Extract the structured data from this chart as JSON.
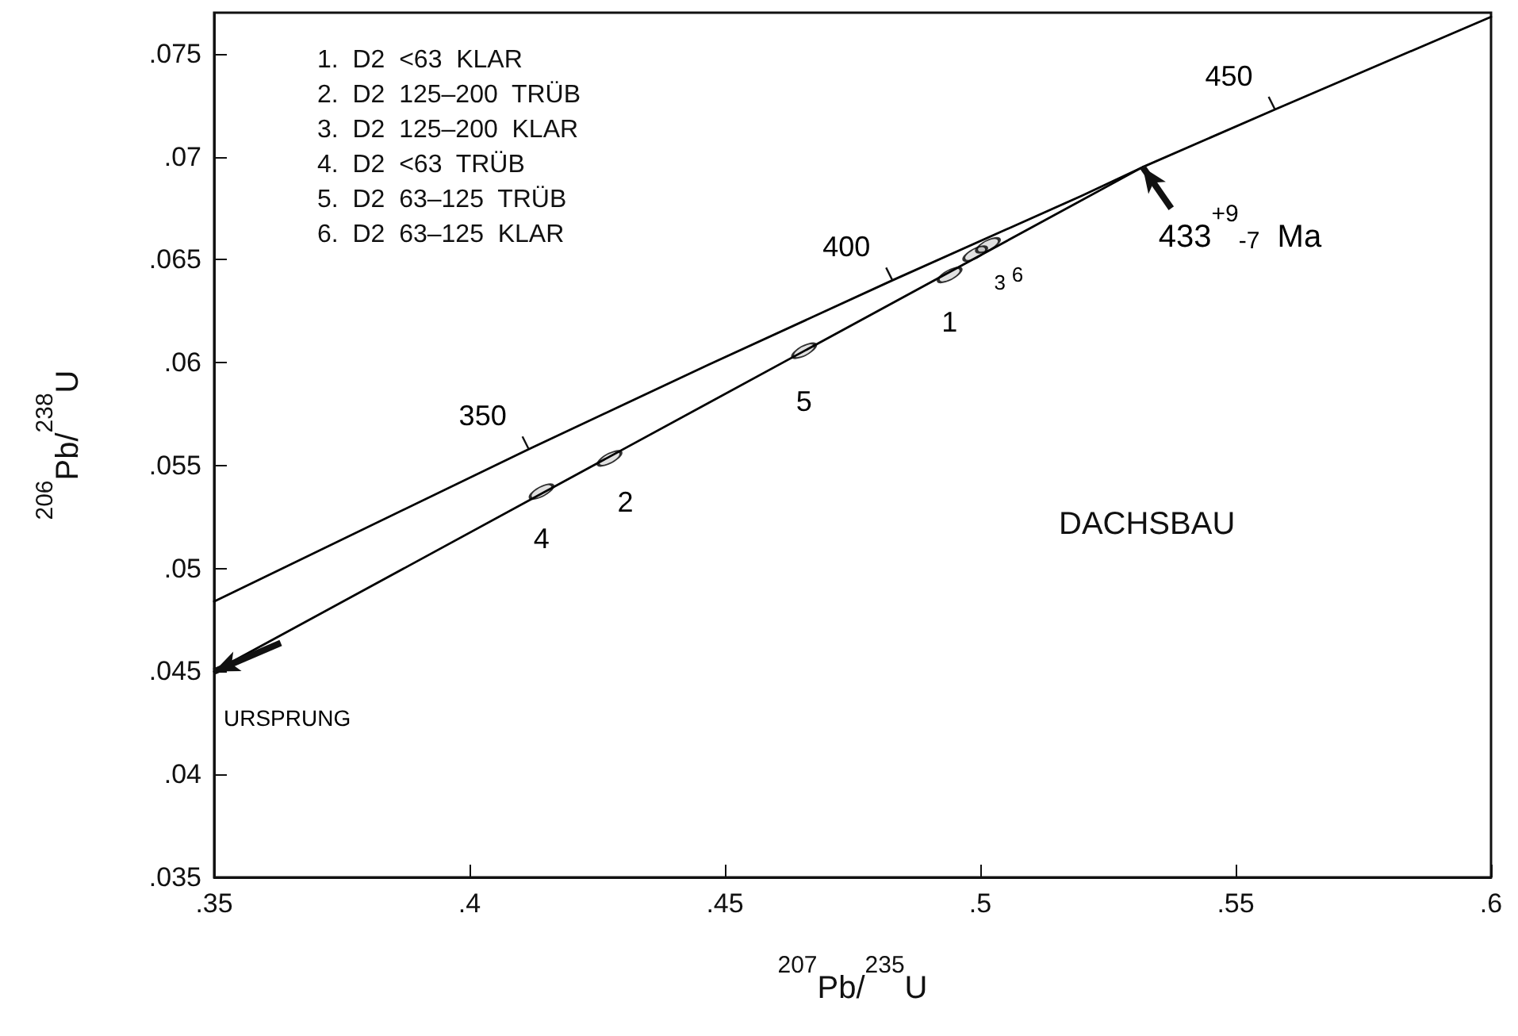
{
  "chart_data": {
    "type": "line",
    "title": "DACHSBAU",
    "xlabel": "$^{207}$Pb/$^{235}$U",
    "ylabel": "$^{206}$Pb/$^{238}$U",
    "xlim": [
      0.35,
      0.6
    ],
    "ylim": [
      0.035,
      0.077
    ],
    "xticks": [
      {
        "value": 0.35,
        "label": ".35"
      },
      {
        "value": 0.4,
        "label": ".4"
      },
      {
        "value": 0.45,
        "label": ".45"
      },
      {
        "value": 0.5,
        "label": ".5"
      },
      {
        "value": 0.55,
        "label": ".55"
      },
      {
        "value": 0.6,
        "label": ".6"
      }
    ],
    "yticks": [
      {
        "value": 0.035,
        "label": ".035"
      },
      {
        "value": 0.04,
        "label": ".04"
      },
      {
        "value": 0.045,
        "label": ".045"
      },
      {
        "value": 0.05,
        "label": ".05"
      },
      {
        "value": 0.055,
        "label": ".055"
      },
      {
        "value": 0.06,
        "label": ".06"
      },
      {
        "value": 0.065,
        "label": ".065"
      },
      {
        "value": 0.07,
        "label": ".07"
      },
      {
        "value": 0.075,
        "label": ".075"
      }
    ],
    "grid": false,
    "series": [
      {
        "color": "#000000",
        "marker": "none",
        "x": [
          0.35,
          0.4116,
          0.4468,
          0.4828,
          0.5198,
          0.5318,
          0.5577,
          0.6
        ],
        "values": [
          0.0484,
          0.0558,
          0.0599,
          0.064,
          0.0681,
          0.0695,
          0.0723,
          0.0768
        ]
      },
      {
        "type": "line",
        "color": "#000000",
        "marker": "none",
        "x": [
          0.35,
          0.5318
        ],
        "values": [
          0.045,
          0.0695
        ]
      },
      {
        "type": "scatter",
        "color": "#000000",
        "marker": "circle",
        "x": [
          0.4141,
          0.4274,
          0.4655,
          0.494,
          0.499,
          0.5015
        ],
        "values": [
          0.05374,
          0.05535,
          0.06058,
          0.06426,
          0.0653,
          0.0657
        ]
      }
    ],
    "annotations": [
      "1.  D2  <63  KLAR",
      "2.  D2  125–200  TRÜB",
      "3.  D2  125–200  KLAR",
      "4.  D2  <63  TRÜB",
      "5.  D2  63–125  TRÜB",
      "6.  D2  63–125  KLAR",
      {
        "text": "350",
        "x": 0.4116,
        "y": 0.0558
      },
      {
        "text": "400",
        "x": 0.4828,
        "y": 0.064
      },
      {
        "text": "450",
        "x": 0.5577,
        "y": 0.0723
      },
      {
        "text": "4",
        "x": 0.4141,
        "y": 0.05374
      },
      {
        "text": "2",
        "x": 0.4274,
        "y": 0.05535
      },
      {
        "text": "5",
        "x": 0.4655,
        "y": 0.06058
      },
      {
        "text": "1",
        "x": 0.494,
        "y": 0.06426
      },
      {
        "text": "3",
        "x": 0.499,
        "y": 0.0653
      },
      {
        "text": "6",
        "x": 0.5015,
        "y": 0.0657
      },
      {
        "text": "433$^{+9}$$_{-7}$  Ma",
        "x": 0.5318,
        "y": 0.0695
      },
      {
        "text": "URSPRUNG",
        "x": 0.35,
        "y": 0.045
      }
    ]
  }
}
